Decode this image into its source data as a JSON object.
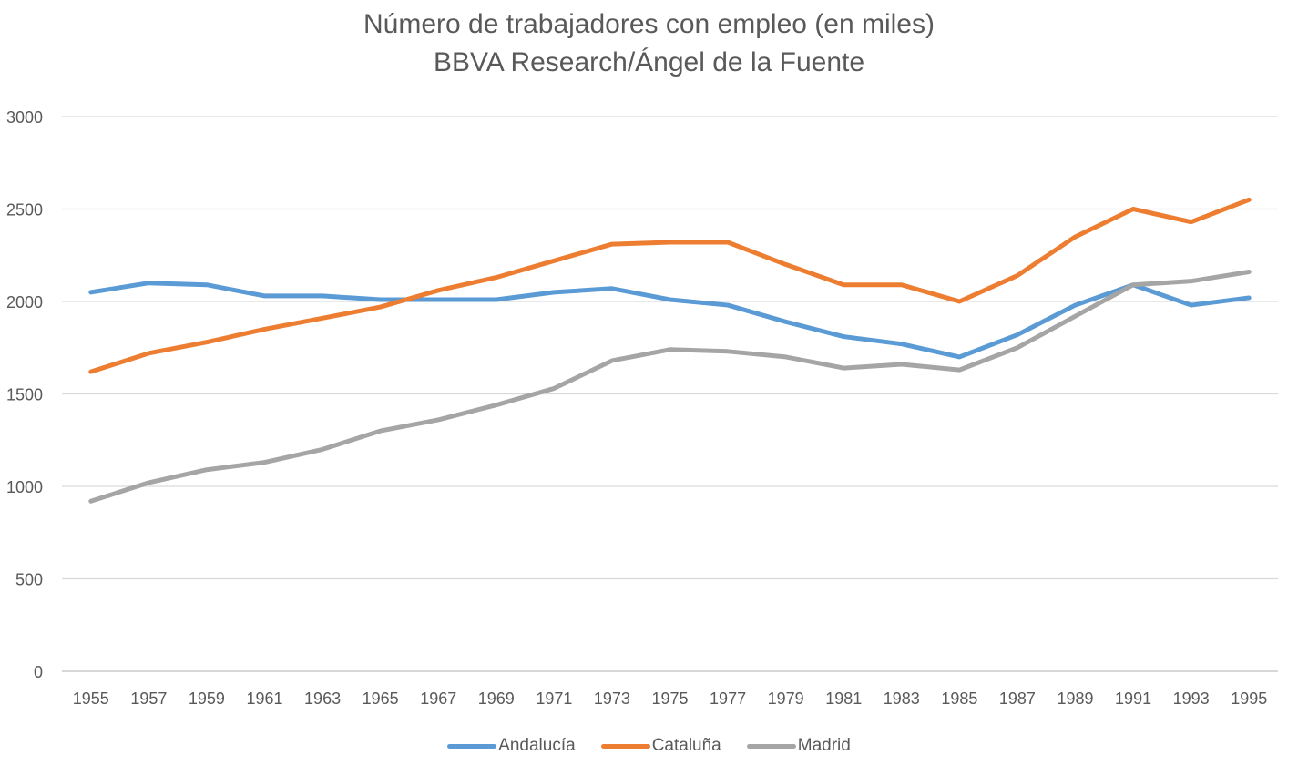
{
  "chart_data": {
    "type": "line",
    "title": "Número de trabajadores con empleo (en miles)",
    "subtitle": "BBVA Research/Ángel de la Fuente",
    "xlabel": "",
    "ylabel": "",
    "ylim": [
      0,
      3000
    ],
    "yticks": [
      0,
      500,
      1000,
      1500,
      2000,
      2500,
      3000
    ],
    "grid": true,
    "legend_position": "bottom",
    "categories": [
      "1955",
      "1957",
      "1959",
      "1961",
      "1963",
      "1965",
      "1967",
      "1969",
      "1971",
      "1973",
      "1975",
      "1977",
      "1979",
      "1981",
      "1983",
      "1985",
      "1987",
      "1989",
      "1991",
      "1993",
      "1995"
    ],
    "series": [
      {
        "name": "Andalucía",
        "color": "#5B9BD5",
        "values": [
          2050,
          2100,
          2090,
          2030,
          2030,
          2010,
          2010,
          2010,
          2050,
          2070,
          2010,
          1980,
          1890,
          1810,
          1770,
          1700,
          1820,
          1980,
          2090,
          1980,
          2020
        ]
      },
      {
        "name": "Cataluña",
        "color": "#ED7D31",
        "values": [
          1620,
          1720,
          1780,
          1850,
          1910,
          1970,
          2060,
          2130,
          2220,
          2310,
          2320,
          2320,
          2200,
          2090,
          2090,
          2000,
          2140,
          2350,
          2500,
          2430,
          2550
        ]
      },
      {
        "name": "Madrid",
        "color": "#A5A5A5",
        "values": [
          920,
          1020,
          1090,
          1130,
          1200,
          1300,
          1360,
          1440,
          1530,
          1680,
          1740,
          1730,
          1700,
          1640,
          1660,
          1630,
          1750,
          1920,
          2090,
          2110,
          2160
        ]
      }
    ]
  }
}
